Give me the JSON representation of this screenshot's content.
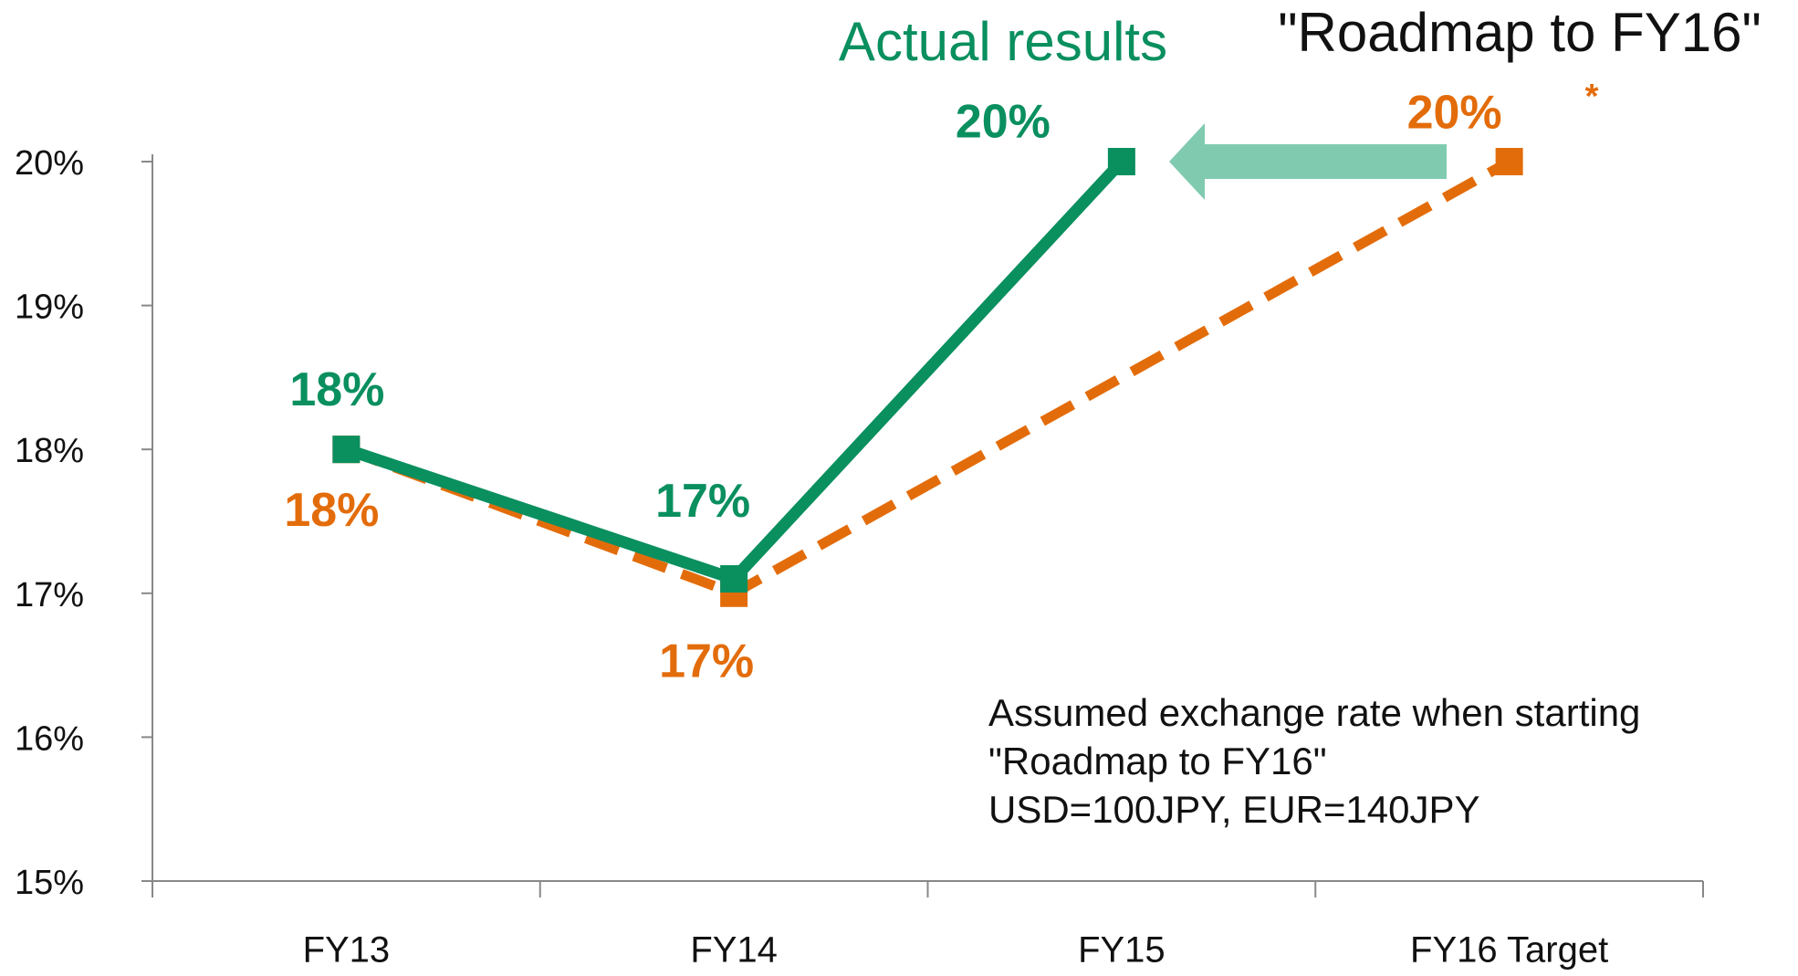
{
  "chart_data": {
    "type": "line",
    "categories": [
      "FY13",
      "FY14",
      "FY15",
      "FY16 Target"
    ],
    "series": [
      {
        "name": "\"Roadmap to FY16\"",
        "color": "#e36c0a",
        "dashed": true,
        "values": [
          18,
          17,
          18.5,
          20
        ],
        "value_labels": [
          "18%",
          "17%",
          null,
          "20%"
        ]
      },
      {
        "name": "Actual results",
        "color": "#0a8f5f",
        "dashed": false,
        "values": [
          18,
          17.1,
          20,
          null
        ],
        "value_labels": [
          "18%",
          "17%",
          "20%",
          null
        ]
      }
    ],
    "ylim": [
      15,
      20
    ],
    "yticks": [
      {
        "value": 15,
        "label": "15%"
      },
      {
        "value": 16,
        "label": "16%"
      },
      {
        "value": 17,
        "label": "17%"
      },
      {
        "value": 18,
        "label": "18%"
      },
      {
        "value": 19,
        "label": "19%"
      },
      {
        "value": 20,
        "label": "20%"
      }
    ],
    "grid": false,
    "target_mark": "*",
    "annotations": [
      "Assumed exchange rate when starting",
      "\"Roadmap to FY16\"",
      "USD=100JPY, EUR=140JPY"
    ]
  }
}
